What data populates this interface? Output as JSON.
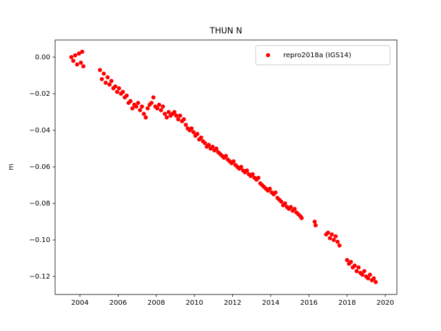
{
  "chart_data": {
    "type": "scatter",
    "title": "THUN N",
    "y_label": "m",
    "x": [
      2003.55,
      2003.65,
      2003.75,
      2003.85,
      2003.95,
      2004.05,
      2004.12,
      2004.18,
      2005.05,
      2005.15,
      2005.25,
      2005.35,
      2005.45,
      2005.55,
      2005.65,
      2005.75,
      2005.85,
      2005.95,
      2006.05,
      2006.15,
      2006.25,
      2006.35,
      2006.45,
      2006.55,
      2006.65,
      2006.75,
      2006.85,
      2006.95,
      2007.05,
      2007.15,
      2007.25,
      2007.35,
      2007.45,
      2007.55,
      2007.65,
      2007.75,
      2007.85,
      2007.95,
      2008.05,
      2008.15,
      2008.25,
      2008.35,
      2008.45,
      2008.55,
      2008.65,
      2008.75,
      2008.85,
      2008.95,
      2009.05,
      2009.15,
      2009.25,
      2009.35,
      2009.45,
      2009.55,
      2009.65,
      2009.75,
      2009.85,
      2009.95,
      2010.05,
      2010.15,
      2010.25,
      2010.35,
      2010.45,
      2010.55,
      2010.65,
      2010.75,
      2010.85,
      2010.95,
      2011.05,
      2011.15,
      2011.25,
      2011.35,
      2011.45,
      2011.55,
      2011.65,
      2011.75,
      2011.85,
      2011.95,
      2012.05,
      2012.15,
      2012.25,
      2012.35,
      2012.45,
      2012.55,
      2012.65,
      2012.75,
      2012.85,
      2012.95,
      2013.05,
      2013.15,
      2013.25,
      2013.35,
      2013.45,
      2013.55,
      2013.65,
      2013.75,
      2013.85,
      2013.95,
      2014.05,
      2014.15,
      2014.25,
      2014.35,
      2014.45,
      2014.55,
      2014.65,
      2014.75,
      2014.85,
      2014.95,
      2015.05,
      2015.15,
      2015.25,
      2015.35,
      2015.45,
      2015.55,
      2015.62,
      2016.3,
      2016.35,
      2016.9,
      2017.0,
      2017.1,
      2017.2,
      2017.3,
      2017.4,
      2017.5,
      2017.6,
      2018.0,
      2018.1,
      2018.2,
      2018.3,
      2018.4,
      2018.5,
      2018.6,
      2018.7,
      2018.8,
      2018.9,
      2019.0,
      2019.1,
      2019.2,
      2019.3,
      2019.4,
      2019.5
    ],
    "series": [
      {
        "name": "repro2018a (IGS14)",
        "color": "#ff0000",
        "values": [
          0.0,
          -0.002,
          0.001,
          -0.004,
          0.002,
          -0.003,
          0.003,
          -0.005,
          -0.007,
          -0.012,
          -0.009,
          -0.014,
          -0.011,
          -0.015,
          -0.013,
          -0.017,
          -0.016,
          -0.019,
          -0.017,
          -0.02,
          -0.019,
          -0.022,
          -0.021,
          -0.025,
          -0.024,
          -0.028,
          -0.026,
          -0.027,
          -0.025,
          -0.029,
          -0.027,
          -0.031,
          -0.033,
          -0.028,
          -0.026,
          -0.025,
          -0.022,
          -0.027,
          -0.028,
          -0.026,
          -0.029,
          -0.027,
          -0.031,
          -0.033,
          -0.03,
          -0.032,
          -0.031,
          -0.03,
          -0.032,
          -0.034,
          -0.032,
          -0.035,
          -0.034,
          -0.037,
          -0.039,
          -0.04,
          -0.039,
          -0.041,
          -0.043,
          -0.042,
          -0.045,
          -0.044,
          -0.046,
          -0.047,
          -0.049,
          -0.048,
          -0.05,
          -0.049,
          -0.051,
          -0.05,
          -0.052,
          -0.053,
          -0.054,
          -0.055,
          -0.054,
          -0.056,
          -0.057,
          -0.058,
          -0.057,
          -0.059,
          -0.06,
          -0.061,
          -0.06,
          -0.062,
          -0.063,
          -0.062,
          -0.064,
          -0.065,
          -0.064,
          -0.066,
          -0.067,
          -0.066,
          -0.069,
          -0.07,
          -0.071,
          -0.072,
          -0.073,
          -0.072,
          -0.074,
          -0.075,
          -0.074,
          -0.077,
          -0.078,
          -0.079,
          -0.081,
          -0.08,
          -0.082,
          -0.083,
          -0.082,
          -0.084,
          -0.083,
          -0.085,
          -0.086,
          -0.087,
          -0.088,
          -0.09,
          -0.092,
          -0.097,
          -0.096,
          -0.099,
          -0.097,
          -0.1,
          -0.098,
          -0.101,
          -0.103,
          -0.111,
          -0.113,
          -0.112,
          -0.115,
          -0.114,
          -0.117,
          -0.115,
          -0.118,
          -0.119,
          -0.117,
          -0.12,
          -0.121,
          -0.119,
          -0.122,
          -0.121,
          -0.123
        ]
      }
    ],
    "xlim": [
      2002.7,
      2020.61
    ],
    "xticks": [
      2004,
      2006,
      2008,
      2010,
      2012,
      2014,
      2016,
      2018,
      2020
    ],
    "ylim": [
      -0.1298,
      0.0094
    ],
    "yticks": [
      {
        "value": 0,
        "label": "0.00"
      },
      {
        "value": -0.02,
        "label": "−0.02"
      },
      {
        "value": -0.04,
        "label": "−0.04"
      },
      {
        "value": -0.06,
        "label": "−0.06"
      },
      {
        "value": -0.08,
        "label": "−0.08"
      },
      {
        "value": -0.1,
        "label": "−0.10"
      },
      {
        "value": -0.12,
        "label": "−0.12"
      }
    ],
    "legend": "upper right"
  }
}
